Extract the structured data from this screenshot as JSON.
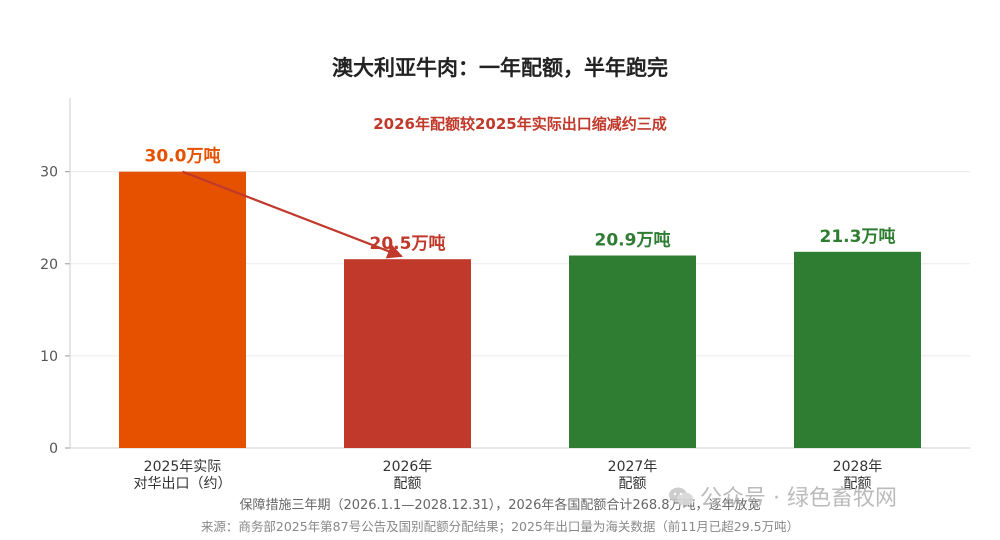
{
  "chart_data": {
    "type": "bar",
    "title": "澳大利亚牛肉：一年配额，半年跑完",
    "annotation": "2026年配额较2025年实际出口缩减约三成",
    "categories": [
      [
        "2025年实际",
        "对华出口（约）"
      ],
      [
        "2026年",
        "配额"
      ],
      [
        "2027年",
        "配额"
      ],
      [
        "2028年",
        "配额"
      ]
    ],
    "values": [
      30.0,
      20.5,
      20.9,
      21.3
    ],
    "value_labels": [
      "30.0万吨",
      "20.5万吨",
      "20.9万吨",
      "21.3万吨"
    ],
    "bar_colors": [
      "#E65100",
      "#C0392B",
      "#2E7D32",
      "#2E7D32"
    ],
    "label_colors": [
      "#E65100",
      "#C0392B",
      "#2E7D32",
      "#2E7D32"
    ],
    "yticks": [
      0,
      10,
      20,
      30
    ],
    "ylim": [
      0,
      38
    ],
    "arrow": {
      "from_category": 0,
      "to_category": 1,
      "color": "#C0392B"
    },
    "annotation_color": "#C0392B",
    "grid": true
  },
  "footnotes": {
    "line1": "保障措施三年期（2026.1.1—2028.12.31），2026年各国配额合计268.8万吨，逐年放宽",
    "line2": "来源：商务部2025年第87号公告及国别配额分配结果；2025年出口量为海关数据（前11月已超29.5万吨）"
  },
  "watermark": {
    "text": "公众号 · 绿色畜牧网",
    "icon": "wechat-icon"
  }
}
